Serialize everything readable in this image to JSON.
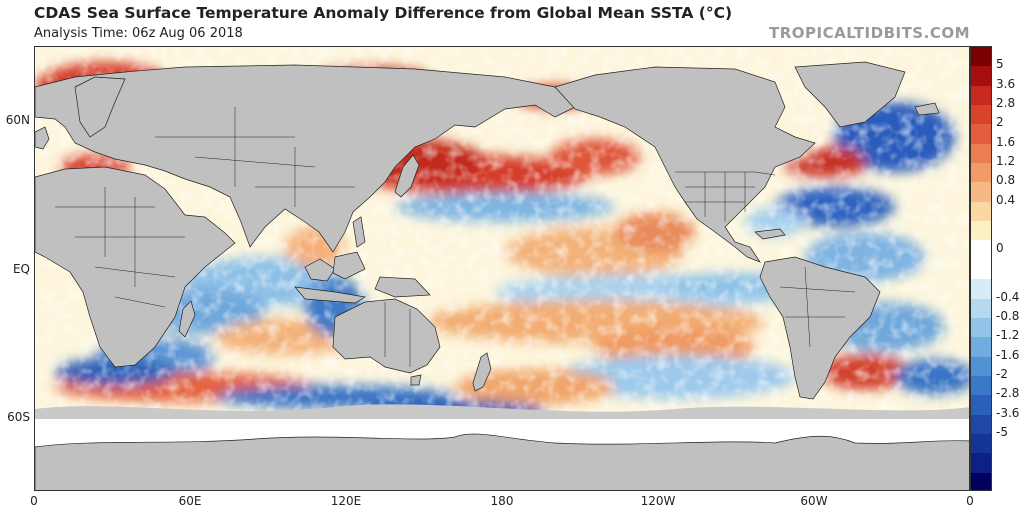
{
  "header": {
    "title": "CDAS Sea Surface Temperature Anomaly Difference from Global Mean SSTA (°C)",
    "analysis_time": "Analysis Time: 06z Aug 06 2018",
    "brand": "TROPICALTIDBITS.COM"
  },
  "map": {
    "lat_labels": [
      "60N",
      "EQ",
      "60S"
    ],
    "lon_labels": [
      "0",
      "60E",
      "120E",
      "180",
      "120W",
      "60W",
      "0"
    ],
    "land_color": "#c0c0c0",
    "ice_color": "#ffffff"
  },
  "colorbar": {
    "labels": [
      "5",
      "3.6",
      "2.8",
      "2",
      "1.6",
      "1.2",
      "0.8",
      "0.4",
      "0",
      "-0.4",
      "-0.8",
      "-1.2",
      "-1.6",
      "-2",
      "-2.8",
      "-3.6",
      "-5"
    ],
    "colors": [
      "#7a0000",
      "#a50f0f",
      "#c62a1e",
      "#d9432b",
      "#e25e3c",
      "#ea7d52",
      "#f19b68",
      "#f6b985",
      "#fad7a3",
      "#fdf0c4",
      "#ffffff",
      "#ffffff",
      "#d6ecf7",
      "#b5d9f0",
      "#92c4e8",
      "#70acdf",
      "#5292d4",
      "#3a78c8",
      "#2a5fba",
      "#1f47a8",
      "#163397",
      "#0e2085",
      "#000060"
    ]
  }
}
